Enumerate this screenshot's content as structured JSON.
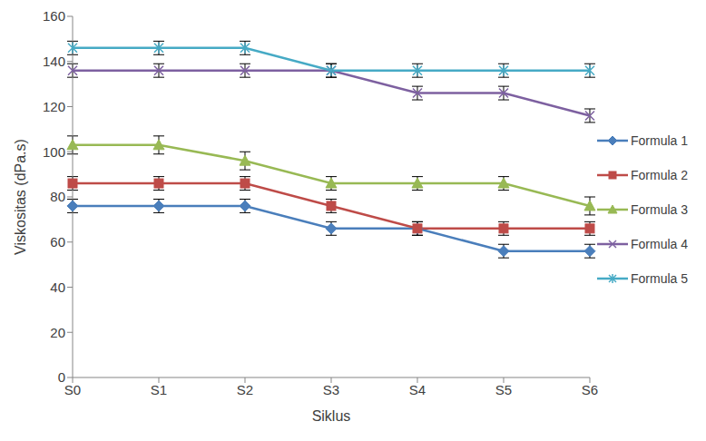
{
  "chart_data": {
    "type": "line",
    "x_label": "Siklus",
    "y_label": "Viskositas (dPa.s)",
    "categories": [
      "S0",
      "S1",
      "S2",
      "S3",
      "S4",
      "S5",
      "S6"
    ],
    "series": [
      {
        "name": "Formula 1",
        "color": "#4a7ebb",
        "marker": "diamond",
        "values": [
          76,
          76,
          76,
          66,
          66,
          56,
          56
        ],
        "errors": [
          3,
          3,
          3,
          3,
          3,
          3,
          3
        ]
      },
      {
        "name": "Formula 2",
        "color": "#be4b48",
        "marker": "square",
        "values": [
          86,
          86,
          86,
          76,
          66,
          66,
          66
        ],
        "errors": [
          3,
          3,
          3,
          3,
          3,
          3,
          3
        ]
      },
      {
        "name": "Formula 3",
        "color": "#98b954",
        "marker": "triangle",
        "values": [
          103,
          103,
          96,
          86,
          86,
          86,
          76
        ],
        "errors": [
          4,
          4,
          4,
          3,
          3,
          3,
          4
        ]
      },
      {
        "name": "Formula 4",
        "color": "#7d60a0",
        "marker": "x",
        "values": [
          136,
          136,
          136,
          136,
          126,
          126,
          116
        ],
        "errors": [
          3,
          3,
          3,
          3,
          3,
          3,
          3
        ]
      },
      {
        "name": "Formula 5",
        "color": "#46aac5",
        "marker": "star",
        "values": [
          146,
          146,
          146,
          136,
          136,
          136,
          136
        ],
        "errors": [
          3,
          3,
          3,
          3,
          3,
          3,
          3
        ]
      }
    ],
    "ylim": [
      0,
      160
    ],
    "yticks": [
      0,
      20,
      40,
      60,
      80,
      100,
      120,
      140,
      160
    ],
    "grid": false,
    "legend": "right"
  }
}
